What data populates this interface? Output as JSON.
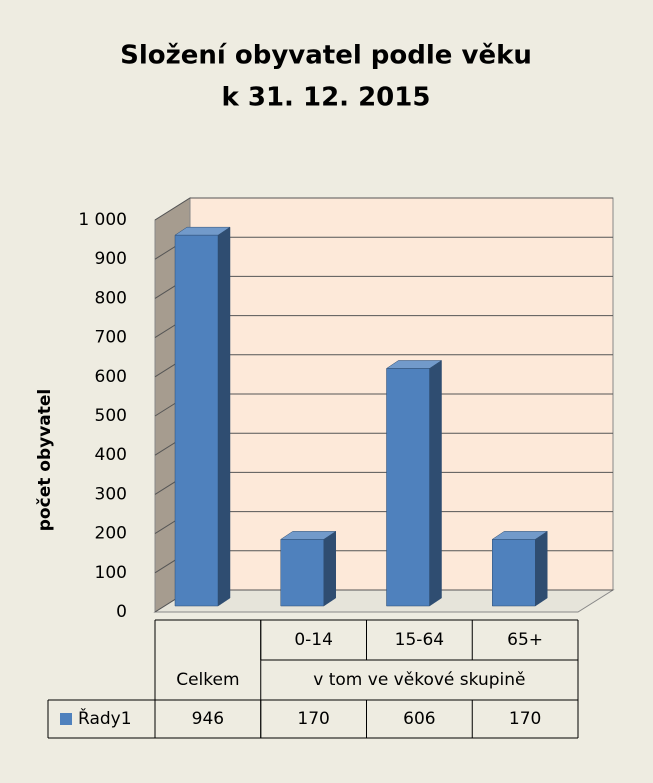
{
  "chart_data": {
    "type": "bar3d",
    "title": [
      "Složení obyvatel podle věku",
      "k 31. 12. 2015"
    ],
    "ylabel": "počet obyvatel",
    "categories": [
      null,
      "0-14",
      "15-64",
      "65+"
    ],
    "groups": [
      {
        "name": "Celkem",
        "count": 1
      },
      {
        "name": "v tom ve věkové skupině",
        "count": 3
      }
    ],
    "series": [
      {
        "name": "Řady1",
        "color": "#4f81bd",
        "values": [
          946,
          170,
          606,
          170
        ]
      }
    ],
    "ylim": [
      0,
      1000
    ],
    "yticks": [
      0,
      100,
      200,
      300,
      400,
      500,
      600,
      700,
      800,
      900,
      {
        "value": 1000,
        "label": "1 000"
      }
    ],
    "grid": true,
    "data_table": true
  }
}
